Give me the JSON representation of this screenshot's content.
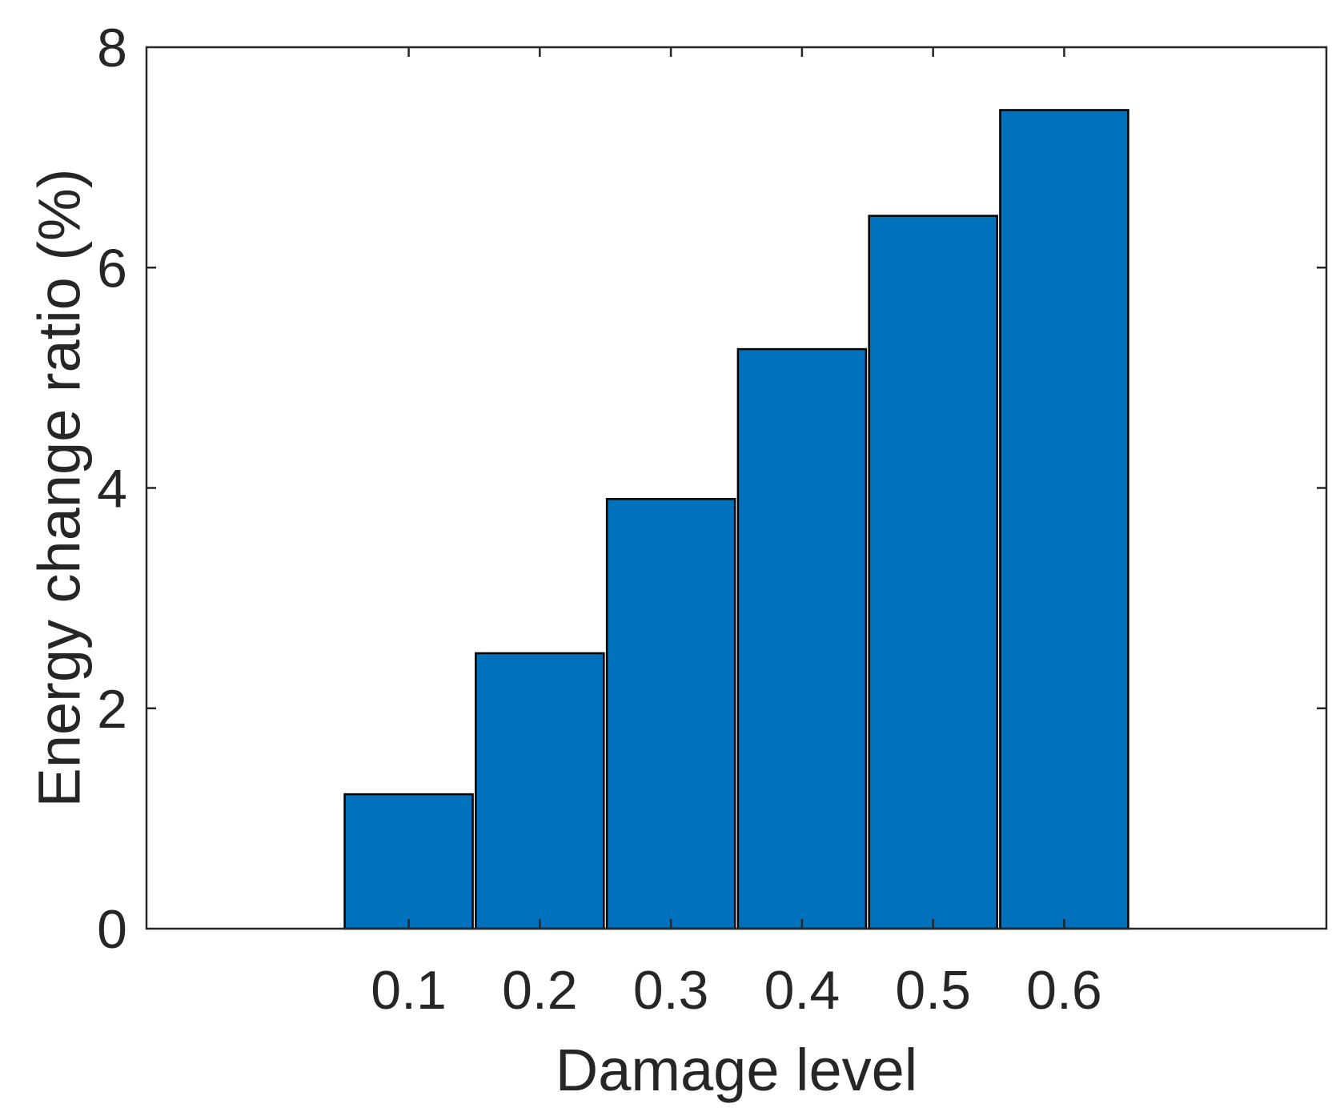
{
  "chart_data": {
    "type": "bar",
    "title": "",
    "xlabel": "Damage level",
    "ylabel": "Energy change ratio (%)",
    "categories": [
      "0.1",
      "0.2",
      "0.3",
      "0.4",
      "0.5",
      "0.6"
    ],
    "values": [
      1.22,
      2.5,
      3.9,
      5.26,
      6.47,
      7.43
    ],
    "x_range": [
      -0.1,
      0.8
    ],
    "ylim": [
      0,
      8
    ],
    "yticks": [
      0,
      2,
      4,
      6,
      8
    ],
    "ytick_labels": [
      "0",
      "2",
      "4",
      "6",
      "8"
    ],
    "grid": false,
    "legend": "none",
    "bar_color": "#0072BD",
    "edge_color": "#000000",
    "axis_color": "#262626"
  }
}
